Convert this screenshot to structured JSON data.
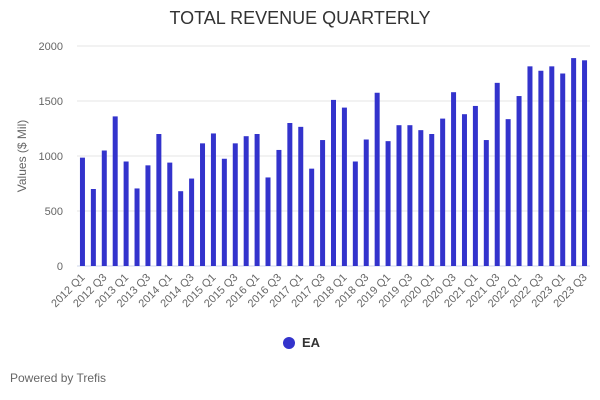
{
  "chart_data": {
    "type": "bar",
    "title": "TOTAL REVENUE QUARTERLY",
    "xlabel": "",
    "ylabel": "Values ($ Mil)",
    "ylim": [
      0,
      2000
    ],
    "yticks": [
      0,
      500,
      1000,
      1500,
      2000
    ],
    "yticklabels": [
      "0",
      "500",
      "1000",
      "1500",
      "2000"
    ],
    "grid": true,
    "legend_position": "bottom-center",
    "categories": [
      "2012 Q1",
      "2012 Q2",
      "2012 Q3",
      "2012 Q4",
      "2013 Q1",
      "2013 Q2",
      "2013 Q3",
      "2013 Q4",
      "2014 Q1",
      "2014 Q2",
      "2014 Q3",
      "2014 Q4",
      "2015 Q1",
      "2015 Q2",
      "2015 Q3",
      "2015 Q4",
      "2016 Q1",
      "2016 Q2",
      "2016 Q3",
      "2016 Q4",
      "2017 Q1",
      "2017 Q2",
      "2017 Q3",
      "2017 Q4",
      "2018 Q1",
      "2018 Q2",
      "2018 Q3",
      "2018 Q4",
      "2019 Q1",
      "2019 Q2",
      "2019 Q3",
      "2019 Q4",
      "2020 Q1",
      "2020 Q2",
      "2020 Q3",
      "2020 Q4",
      "2021 Q1",
      "2021 Q2",
      "2021 Q3",
      "2021 Q4",
      "2022 Q1",
      "2022 Q2",
      "2022 Q3",
      "2022 Q4",
      "2023 Q1",
      "2023 Q2",
      "2023 Q3"
    ],
    "series": [
      {
        "name": "EA",
        "color": "#3333cc",
        "values": [
          985,
          700,
          1050,
          1360,
          950,
          705,
          915,
          1200,
          940,
          680,
          795,
          1115,
          1205,
          975,
          1115,
          1180,
          1200,
          805,
          1055,
          1300,
          1265,
          885,
          1145,
          1510,
          1440,
          950,
          1150,
          1575,
          1135,
          1280,
          1280,
          1235,
          1200,
          1340,
          1580,
          1380,
          1455,
          1145,
          1665,
          1335,
          1545,
          1815,
          1775,
          1815,
          1750,
          1890,
          1870
        ]
      }
    ]
  },
  "footer": {
    "credit": "Powered by Trefis"
  }
}
